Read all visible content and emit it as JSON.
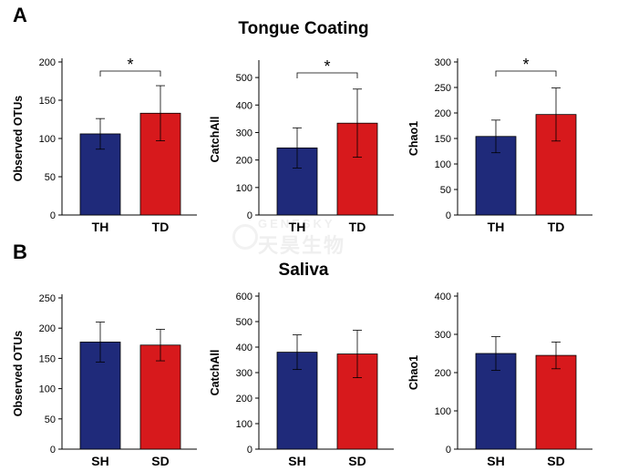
{
  "panels": {
    "A": {
      "letter": "A",
      "title": "Tongue Coating"
    },
    "B": {
      "letter": "B",
      "title": "Saliva"
    }
  },
  "watermark": {
    "line1": "GENESKY",
    "line2": "天昊生物"
  },
  "colors": {
    "healthy": "#1f2a7a",
    "disease": "#d7191c"
  },
  "chart_data": [
    {
      "type": "bar",
      "panel": "A",
      "ylabel": "Observed OTUs",
      "ylim": [
        0,
        200
      ],
      "ticks": [
        0,
        50,
        100,
        150,
        200
      ],
      "categories": [
        "TH",
        "TD"
      ],
      "values": [
        106,
        133
      ],
      "errors": [
        20,
        36
      ],
      "significance": "*"
    },
    {
      "type": "bar",
      "panel": "A",
      "ylabel": "CatchAll",
      "ylim": [
        0,
        550
      ],
      "ticks": [
        0,
        100,
        200,
        300,
        400,
        500
      ],
      "categories": [
        "TH",
        "TD"
      ],
      "values": [
        244,
        334
      ],
      "errors": [
        73,
        124
      ],
      "significance": "*"
    },
    {
      "type": "bar",
      "panel": "A",
      "ylabel": "Chao1",
      "ylim": [
        0,
        300
      ],
      "ticks": [
        0,
        50,
        100,
        150,
        200,
        250,
        300
      ],
      "categories": [
        "TH",
        "TD"
      ],
      "values": [
        154,
        197
      ],
      "errors": [
        32,
        52
      ],
      "significance": "*"
    },
    {
      "type": "bar",
      "panel": "B",
      "ylabel": "Observed OTUs",
      "ylim": [
        0,
        250
      ],
      "ticks": [
        0,
        50,
        100,
        150,
        200,
        250
      ],
      "categories": [
        "SH",
        "SD"
      ],
      "values": [
        177,
        172
      ],
      "errors": [
        33,
        26
      ],
      "significance": ""
    },
    {
      "type": "bar",
      "panel": "B",
      "ylabel": "CatchAll",
      "ylim": [
        0,
        600
      ],
      "ticks": [
        0,
        100,
        200,
        300,
        400,
        500,
        600
      ],
      "categories": [
        "SH",
        "SD"
      ],
      "values": [
        380,
        373
      ],
      "errors": [
        68,
        93
      ],
      "significance": ""
    },
    {
      "type": "bar",
      "panel": "B",
      "ylabel": "Chao1",
      "ylim": [
        0,
        400
      ],
      "ticks": [
        0,
        100,
        200,
        300,
        400
      ],
      "categories": [
        "SH",
        "SD"
      ],
      "values": [
        250,
        245
      ],
      "errors": [
        44,
        35
      ],
      "significance": ""
    }
  ]
}
